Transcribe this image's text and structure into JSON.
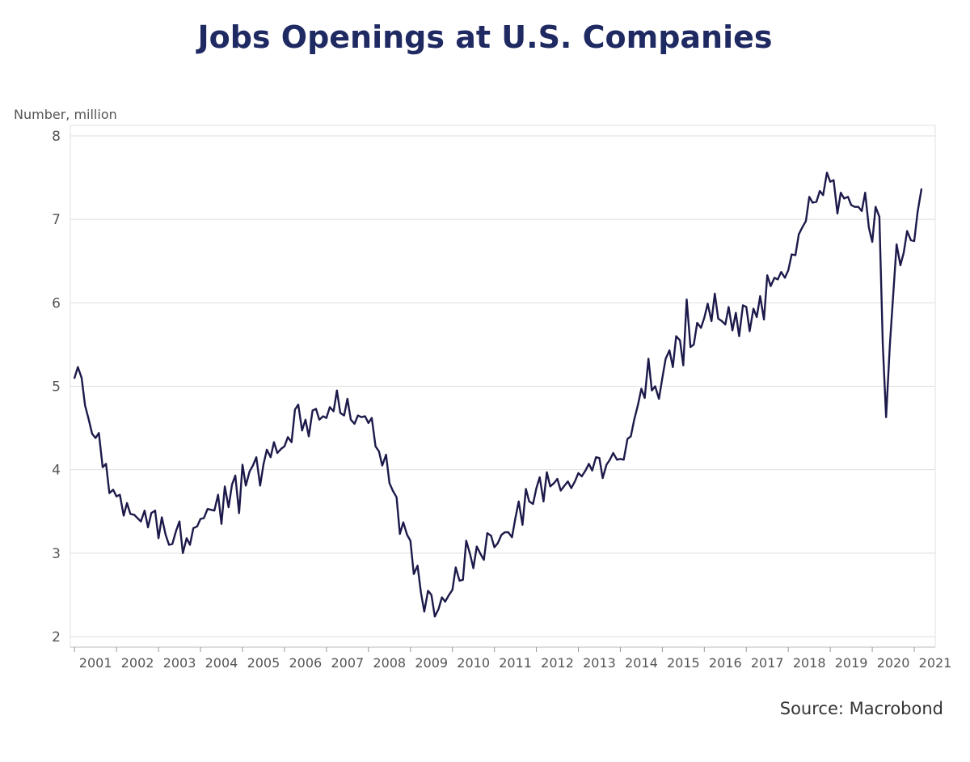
{
  "chart_data": {
    "type": "line",
    "title": "Jobs Openings at U.S. Companies",
    "ylabel": "Number, million",
    "xlabel": "",
    "source": "Source: Macrobond",
    "ylim": [
      2,
      8
    ],
    "yticks": [
      2,
      3,
      4,
      5,
      6,
      7,
      8
    ],
    "x_start_year": 2000.9,
    "x_end_year": 2021.5,
    "xticks": [
      "2001",
      "2002",
      "2003",
      "2004",
      "2005",
      "2006",
      "2007",
      "2008",
      "2009",
      "2010",
      "2011",
      "2012",
      "2013",
      "2014",
      "2015",
      "2016",
      "2017",
      "2018",
      "2019",
      "2020",
      "2021"
    ],
    "grid": true,
    "line_color": "#1c1a4a",
    "series": [
      {
        "x": [
          2001.0,
          2001.08,
          2001.17,
          2001.25,
          2001.33,
          2001.42,
          2001.5,
          2001.58,
          2001.67,
          2001.75,
          2001.83,
          2001.92,
          2002.0,
          2002.08,
          2002.17,
          2002.25,
          2002.33,
          2002.42,
          2002.5,
          2002.58,
          2002.67,
          2002.75,
          2002.83,
          2002.92,
          2003.0,
          2003.08,
          2003.17,
          2003.25,
          2003.33,
          2003.42,
          2003.5,
          2003.58,
          2003.67,
          2003.75,
          2003.83,
          2003.92,
          2004.0,
          2004.08,
          2004.17,
          2004.25,
          2004.33,
          2004.42,
          2004.5,
          2004.58,
          2004.67,
          2004.75,
          2004.83,
          2004.92,
          2005.0,
          2005.08,
          2005.17,
          2005.25,
          2005.33,
          2005.42,
          2005.5,
          2005.58,
          2005.67,
          2005.75,
          2005.83,
          2005.92,
          2006.0,
          2006.08,
          2006.17,
          2006.25,
          2006.33,
          2006.42,
          2006.5,
          2006.58,
          2006.67,
          2006.75,
          2006.83,
          2006.92,
          2007.0,
          2007.08,
          2007.17,
          2007.25,
          2007.33,
          2007.42,
          2007.5,
          2007.58,
          2007.67,
          2007.75,
          2007.83,
          2007.92,
          2008.0,
          2008.08,
          2008.17,
          2008.25,
          2008.33,
          2008.42,
          2008.5,
          2008.58,
          2008.67,
          2008.75,
          2008.83,
          2008.92,
          2009.0,
          2009.08,
          2009.17,
          2009.25,
          2009.33,
          2009.42,
          2009.5,
          2009.58,
          2009.67,
          2009.75,
          2009.83,
          2009.92,
          2010.0,
          2010.08,
          2010.17,
          2010.25,
          2010.33,
          2010.42,
          2010.5,
          2010.58,
          2010.67,
          2010.75,
          2010.83,
          2010.92,
          2011.0,
          2011.08,
          2011.17,
          2011.25,
          2011.33,
          2011.42,
          2011.5,
          2011.58,
          2011.67,
          2011.75,
          2011.83,
          2011.92,
          2012.0,
          2012.08,
          2012.17,
          2012.25,
          2012.33,
          2012.42,
          2012.5,
          2012.58,
          2012.67,
          2012.75,
          2012.83,
          2012.92,
          2013.0,
          2013.08,
          2013.17,
          2013.25,
          2013.33,
          2013.42,
          2013.5,
          2013.58,
          2013.67,
          2013.75,
          2013.83,
          2013.92,
          2014.0,
          2014.08,
          2014.17,
          2014.25,
          2014.33,
          2014.42,
          2014.5,
          2014.58,
          2014.67,
          2014.75,
          2014.83,
          2014.92,
          2015.0,
          2015.08,
          2015.17,
          2015.25,
          2015.33,
          2015.42,
          2015.5,
          2015.58,
          2015.67,
          2015.75,
          2015.83,
          2015.92,
          2016.0,
          2016.08,
          2016.17,
          2016.25,
          2016.33,
          2016.42,
          2016.5,
          2016.58,
          2016.67,
          2016.75,
          2016.83,
          2016.92,
          2017.0,
          2017.08,
          2017.17,
          2017.25,
          2017.33,
          2017.42,
          2017.5,
          2017.58,
          2017.67,
          2017.75,
          2017.83,
          2017.92,
          2018.0,
          2018.08,
          2018.17,
          2018.25,
          2018.33,
          2018.42,
          2018.5,
          2018.58,
          2018.67,
          2018.75,
          2018.83,
          2018.92,
          2019.0,
          2019.08,
          2019.17,
          2019.25,
          2019.33,
          2019.42,
          2019.5,
          2019.58,
          2019.67,
          2019.75,
          2019.83,
          2019.92,
          2020.0,
          2020.08,
          2020.17,
          2020.25,
          2020.33,
          2020.42,
          2020.5,
          2020.58,
          2020.67,
          2020.75,
          2020.83,
          2020.92,
          2021.0,
          2021.08,
          2021.17
        ],
        "values": [
          5.1,
          5.23,
          5.1,
          4.77,
          4.62,
          4.43,
          4.38,
          4.44,
          4.03,
          4.07,
          3.72,
          3.76,
          3.68,
          3.7,
          3.45,
          3.6,
          3.47,
          3.46,
          3.42,
          3.38,
          3.51,
          3.31,
          3.48,
          3.51,
          3.18,
          3.43,
          3.22,
          3.1,
          3.11,
          3.27,
          3.38,
          3.0,
          3.18,
          3.1,
          3.3,
          3.32,
          3.41,
          3.42,
          3.53,
          3.52,
          3.51,
          3.7,
          3.35,
          3.8,
          3.55,
          3.82,
          3.93,
          3.48,
          4.06,
          3.81,
          3.98,
          4.05,
          4.15,
          3.81,
          4.06,
          4.24,
          4.15,
          4.33,
          4.2,
          4.25,
          4.28,
          4.39,
          4.33,
          4.72,
          4.78,
          4.47,
          4.6,
          4.4,
          4.71,
          4.73,
          4.6,
          4.64,
          4.62,
          4.75,
          4.7,
          4.95,
          4.68,
          4.65,
          4.85,
          4.6,
          4.55,
          4.65,
          4.63,
          4.64,
          4.56,
          4.62,
          4.28,
          4.22,
          4.05,
          4.18,
          3.84,
          3.75,
          3.67,
          3.23,
          3.37,
          3.22,
          3.15,
          2.75,
          2.85,
          2.53,
          2.3,
          2.55,
          2.5,
          2.24,
          2.33,
          2.47,
          2.42,
          2.5,
          2.56,
          2.83,
          2.67,
          2.68,
          3.15,
          2.99,
          2.82,
          3.08,
          2.99,
          2.92,
          3.24,
          3.21,
          3.07,
          3.12,
          3.22,
          3.25,
          3.25,
          3.19,
          3.42,
          3.62,
          3.34,
          3.77,
          3.62,
          3.59,
          3.78,
          3.91,
          3.62,
          3.97,
          3.8,
          3.84,
          3.89,
          3.75,
          3.81,
          3.86,
          3.78,
          3.86,
          3.96,
          3.92,
          3.99,
          4.07,
          3.99,
          4.15,
          4.14,
          3.9,
          4.06,
          4.12,
          4.2,
          4.12,
          4.13,
          4.12,
          4.37,
          4.4,
          4.6,
          4.78,
          4.97,
          4.86,
          5.33,
          4.95,
          5.0,
          4.85,
          5.1,
          5.33,
          5.43,
          5.23,
          5.6,
          5.55,
          5.25,
          6.04,
          5.47,
          5.5,
          5.76,
          5.7,
          5.82,
          5.99,
          5.78,
          6.11,
          5.81,
          5.78,
          5.74,
          5.95,
          5.67,
          5.88,
          5.6,
          5.97,
          5.95,
          5.66,
          5.93,
          5.83,
          6.08,
          5.8,
          6.33,
          6.2,
          6.3,
          6.28,
          6.37,
          6.3,
          6.39,
          6.58,
          6.57,
          6.82,
          6.9,
          6.98,
          7.27,
          7.2,
          7.21,
          7.34,
          7.29,
          7.56,
          7.45,
          7.47,
          7.07,
          7.32,
          7.25,
          7.27,
          7.17,
          7.15,
          7.15,
          7.1,
          7.32,
          6.9,
          6.73,
          7.15,
          7.03,
          5.5,
          4.63,
          5.5,
          6.11,
          6.7,
          6.45,
          6.6,
          6.86,
          6.75,
          6.74,
          7.09,
          7.36
        ]
      }
    ]
  }
}
